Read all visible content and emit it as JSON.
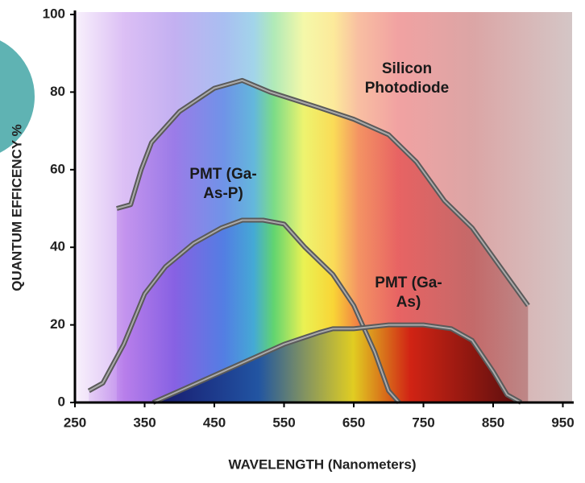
{
  "chart_data": {
    "type": "line",
    "xlabel": "WAVELENGTH (Nanometers)",
    "ylabel": "QUANTUM EFFICENCY %",
    "xlim": [
      250,
      950
    ],
    "xticks": [
      250,
      350,
      450,
      550,
      650,
      750,
      850,
      950
    ],
    "ylim": [
      0,
      100
    ],
    "yticks": [
      0,
      20,
      40,
      60,
      80,
      100
    ],
    "series": [
      {
        "name": "Silicon Photodiode",
        "color": "#5a5a5a",
        "x": [
          310,
          330,
          345,
          360,
          400,
          450,
          490,
          530,
          600,
          650,
          700,
          740,
          780,
          820,
          860,
          900
        ],
        "values": [
          50,
          51,
          60,
          67,
          75,
          81,
          83,
          80,
          76,
          73,
          69,
          62,
          52,
          45,
          35,
          25
        ]
      },
      {
        "name": "PMT (Ga-As-P)",
        "color": "#5a5a5a",
        "x": [
          270,
          290,
          320,
          350,
          380,
          420,
          460,
          490,
          520,
          550,
          580,
          620,
          650,
          680,
          700,
          715
        ],
        "values": [
          3,
          5,
          15,
          28,
          35,
          41,
          45,
          47,
          47,
          46,
          40,
          33,
          25,
          13,
          3,
          0
        ]
      },
      {
        "name": "PMT (Ga-As)",
        "color": "#5a5a5a",
        "x": [
          362,
          400,
          450,
          500,
          550,
          600,
          620,
          650,
          700,
          750,
          790,
          820,
          850,
          870,
          890
        ],
        "values": [
          0,
          3,
          7,
          11,
          15,
          18,
          19,
          19,
          20,
          20,
          19,
          16,
          8,
          2,
          0
        ]
      }
    ]
  }
}
